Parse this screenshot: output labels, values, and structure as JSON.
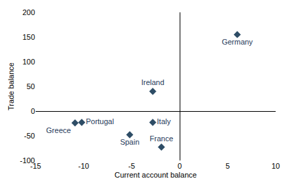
{
  "chart_data": {
    "type": "scatter",
    "x_label": "Current account balance",
    "y_label": "Trade balance",
    "labels": [
      "Germany",
      "Ireland",
      "Italy",
      "Portugal",
      "Greece",
      "Spain",
      "France"
    ],
    "x": [
      6,
      -2.8,
      -2.8,
      -10.2,
      -10.9,
      -5.2,
      -1.9
    ],
    "values": [
      155,
      40,
      -23,
      -23,
      -24,
      -48,
      -73
    ],
    "color": "#2e4d66",
    "marker": "diamond",
    "xlim": [
      -15,
      10
    ],
    "xticks": [
      -15,
      -10,
      -5,
      0,
      5,
      10
    ],
    "ylim": [
      -100,
      200
    ],
    "yticks": [
      -100,
      -50,
      0,
      50,
      100,
      150,
      200
    ],
    "grid": false,
    "data_labels": true
  }
}
